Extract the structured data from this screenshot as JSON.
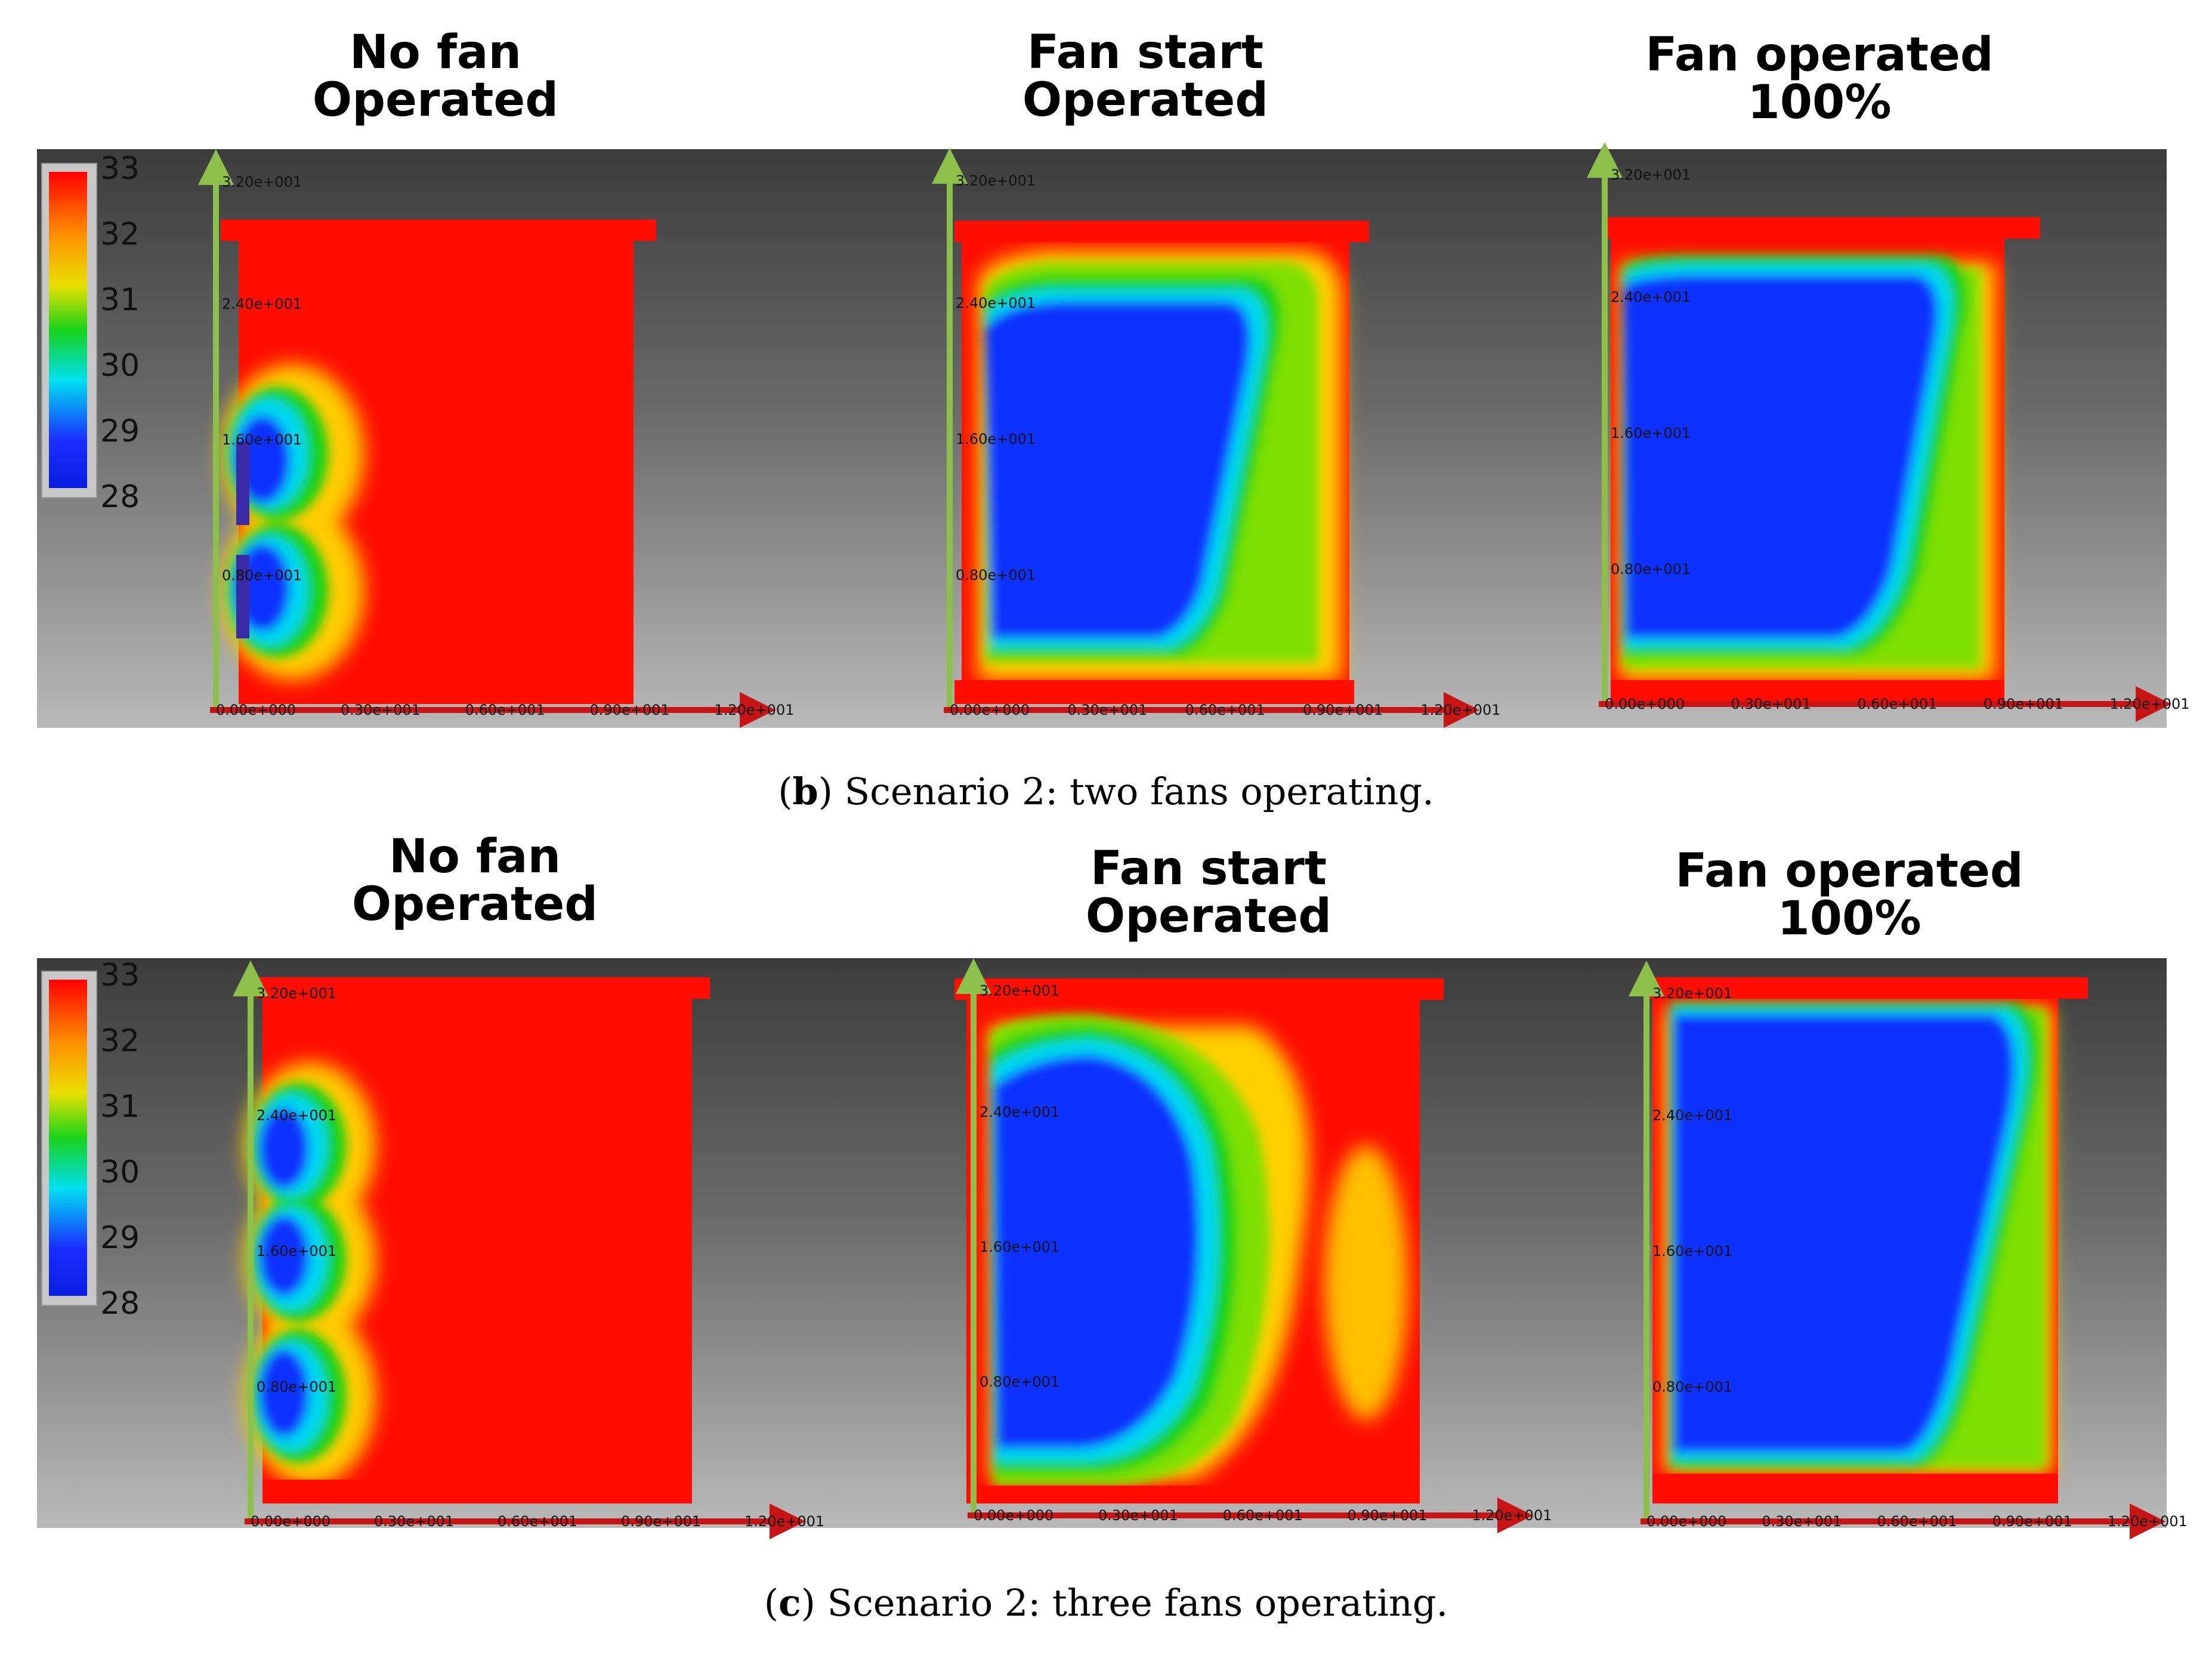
{
  "rows": [
    {
      "caption_letter": "b",
      "caption_text": ") Scenario 2: two fans operating.",
      "panels": [
        {
          "title_line1": "No fan",
          "title_line2": "Operated"
        },
        {
          "title_line1": "Fan start",
          "title_line2": "Operated"
        },
        {
          "title_line1": "Fan operated",
          "title_line2": "100%"
        }
      ]
    },
    {
      "caption_letter": "c",
      "caption_text": ") Scenario 2: three fans operating.",
      "panels": [
        {
          "title_line1": "No fan",
          "title_line2": "Operated"
        },
        {
          "title_line1": "Fan start",
          "title_line2": "Operated"
        },
        {
          "title_line1": "Fan operated",
          "title_line2": "100%"
        }
      ]
    }
  ],
  "legend": {
    "labels": [
      "33",
      "32",
      "31",
      "30",
      "29",
      "28"
    ],
    "colors": [
      "#ff0000",
      "#ff9000",
      "#e8e000",
      "#19d219",
      "#00e0f0",
      "#1a2dff",
      "#0a1de0"
    ]
  },
  "axes": {
    "y_ticks": [
      "3.20e+001",
      "2.40e+001",
      "1.60e+001",
      "0.80e+001"
    ],
    "x_ticks": [
      "0.00e+000",
      "0.30e+001",
      "0.60e+001",
      "0.90e+001",
      "1.20e+001"
    ]
  },
  "colors": {
    "hot": "#ff0d00",
    "cool": "#1030ff",
    "axis_y": "#8cc04a",
    "axis_x": "#c81414"
  }
}
